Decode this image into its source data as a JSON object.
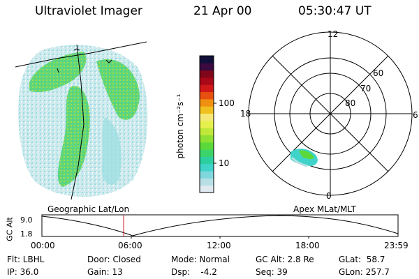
{
  "header": {
    "instrument": "Ultraviolet Imager",
    "date": "21 Apr 00",
    "time": "05:30:47 UT"
  },
  "colorbar": {
    "label": "photon cm⁻²s⁻¹",
    "ticks": [
      "100",
      "10"
    ],
    "colors": [
      "#dfe9ef",
      "#b9dfe6",
      "#7fd6dc",
      "#40d3c9",
      "#2dcf9f",
      "#3bd46b",
      "#5bd93b",
      "#8fe034",
      "#c0e83a",
      "#e6f04c",
      "#f5e878",
      "#f0c020",
      "#f09010",
      "#e85010",
      "#d01818",
      "#a80818",
      "#80061a",
      "#3a0a40",
      "#10103a"
    ]
  },
  "polar": {
    "labels": {
      "top": "12",
      "right": "6",
      "bottom": "0",
      "left": "18",
      "r60": "60",
      "r70": "70",
      "r80": "80"
    }
  },
  "alt_plot": {
    "left_label": "Geographic Lat/Lon",
    "right_label": "Apex MLat/MLT",
    "y_axis_title": "GC Alt",
    "y_ticks": [
      "9.0",
      "1.8"
    ],
    "x_ticks": [
      "00:00",
      "06:00",
      "12:00",
      "18:00",
      "23:59"
    ],
    "colors": {
      "marker": "#cc2020"
    }
  },
  "status": {
    "flt": "Flt: LBHL",
    "ip": "IP: 36.0",
    "door": "Door: Closed",
    "gain": "Gain: 13",
    "mode": "Mode: Normal",
    "dsp": "Dsp:    -4.2",
    "gc_alt": "GC Alt: 2.8 Re",
    "seq": "Seq: 39",
    "glat": "GLat:  58.7",
    "glon": "GLon: 257.7"
  }
}
